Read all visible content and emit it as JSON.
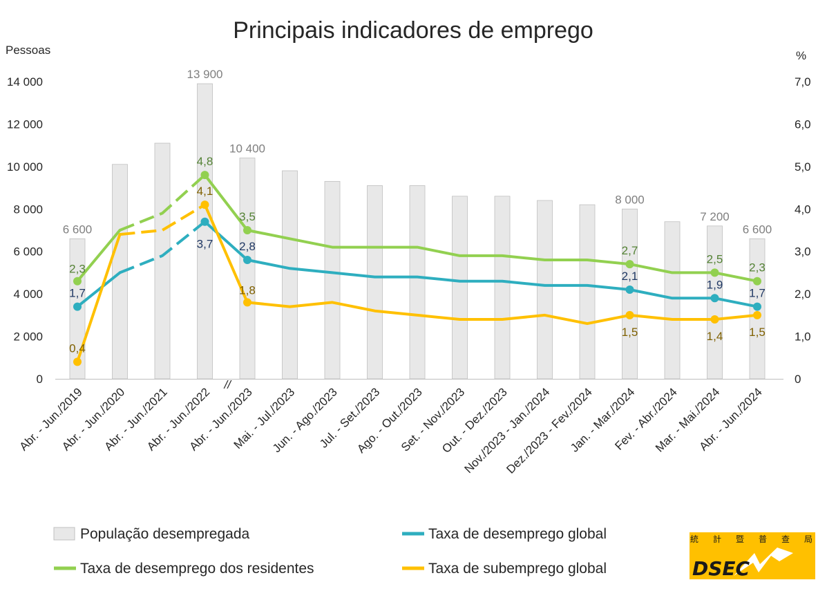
{
  "chart_data": {
    "type": "bar+line",
    "title": "Principais indicadores de emprego",
    "y_left_label": "Pessoas",
    "y_right_label": "%",
    "y_left_range": [
      0,
      14000
    ],
    "y_right_range": [
      0,
      7.0
    ],
    "y_left_ticks": [
      "0",
      "2 000",
      "4 000",
      "6 000",
      "8 000",
      "10 000",
      "12 000",
      "14 000"
    ],
    "y_right_ticks": [
      "0",
      "1,0",
      "2,0",
      "3,0",
      "4,0",
      "5,0",
      "6,0",
      "7,0"
    ],
    "axis_break_after_index": 3,
    "axis_break_symbol": "//",
    "categories": [
      "Abr. - Jun./2019",
      "Abr. - Jun./2020",
      "Abr. - Jun./2021",
      "Abr. - Jun./2022",
      "Abr. - Jun./2023",
      "Mai. - Jul./2023",
      "Jun. - Ago./2023",
      "Jul. - Set./2023",
      "Ago. - Out./2023",
      "Set. - Nov./2023",
      "Out. - Dez./2023",
      "Nov./2023 - Jan./2024",
      "Dez./2023 - Fev./2024",
      "Jan. - Mar./2024",
      "Fev. - Abr./2024",
      "Mar. - Mai./2024",
      "Abr. - Jun./2024"
    ],
    "bars": {
      "name": "População desempregada",
      "color": "#e8e8e8",
      "values": [
        6600,
        10100,
        11100,
        13900,
        10400,
        9800,
        9300,
        9100,
        9100,
        8600,
        8600,
        8400,
        8200,
        8000,
        7400,
        7200,
        6600
      ],
      "labels": [
        "6 600",
        "",
        "",
        "13 900",
        "10 400",
        "",
        "",
        "",
        "",
        "",
        "",
        "",
        "",
        "8 000",
        "",
        "7 200",
        "6 600"
      ]
    },
    "series": [
      {
        "name": "Taxa de desemprego dos residentes",
        "color": "#92d050",
        "label_color": "#548235",
        "values": [
          2.3,
          3.5,
          3.9,
          4.8,
          3.5,
          3.3,
          3.1,
          3.1,
          3.1,
          2.9,
          2.9,
          2.8,
          2.8,
          2.7,
          2.5,
          2.5,
          2.3
        ],
        "labels": [
          "2,3",
          "",
          "",
          "4,8",
          "3,5",
          "",
          "",
          "",
          "",
          "",
          "",
          "",
          "",
          "2,7",
          "",
          "2,5",
          "2,3"
        ]
      },
      {
        "name": "Taxa de desemprego global",
        "color": "#2eaebf",
        "label_color": "#203864",
        "values": [
          1.7,
          2.5,
          2.9,
          3.7,
          2.8,
          2.6,
          2.5,
          2.4,
          2.4,
          2.3,
          2.3,
          2.2,
          2.2,
          2.1,
          1.9,
          1.9,
          1.7
        ],
        "labels": [
          "1,7",
          "",
          "",
          "3,7",
          "2,8",
          "",
          "",
          "",
          "",
          "",
          "",
          "",
          "",
          "2,1",
          "",
          "1,9",
          "1,7"
        ]
      },
      {
        "name": "Taxa de subemprego global",
        "color": "#ffc000",
        "label_color": "#7f6000",
        "values": [
          0.4,
          3.4,
          3.5,
          4.1,
          1.8,
          1.7,
          1.8,
          1.6,
          1.5,
          1.4,
          1.4,
          1.5,
          1.3,
          1.5,
          1.4,
          1.4,
          1.5
        ],
        "labels": [
          "0,4",
          "",
          "",
          "4,1",
          "1,8",
          "",
          "",
          "",
          "",
          "",
          "",
          "",
          "",
          "1,5",
          "",
          "1,4",
          "1,5"
        ]
      }
    ],
    "legend": [
      "População desempregada",
      "Taxa de desemprego global",
      "Taxa de desemprego dos residentes",
      "Taxa de subemprego global"
    ]
  },
  "logo": {
    "text": "DSEC",
    "cjk": [
      "統",
      "計",
      "暨",
      "普",
      "查",
      "局"
    ],
    "bg": "#ffc000"
  }
}
